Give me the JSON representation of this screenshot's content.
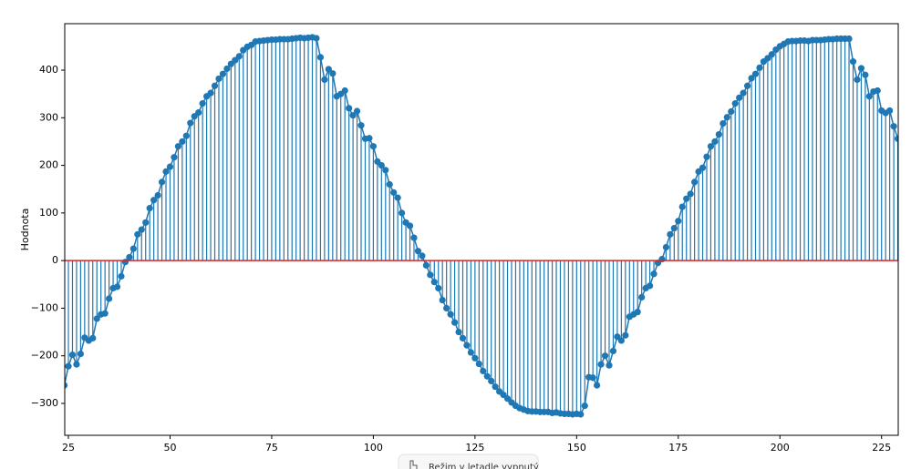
{
  "chart_data": {
    "type": "stem",
    "y_label": "Hodnota",
    "x": [
      24,
      25,
      26,
      27,
      28,
      29,
      30,
      31,
      32,
      33,
      34,
      35,
      36,
      37,
      38,
      39,
      40,
      41,
      42,
      43,
      44,
      45,
      46,
      47,
      48,
      49,
      50,
      51,
      52,
      53,
      54,
      55,
      56,
      57,
      58,
      59,
      60,
      61,
      62,
      63,
      64,
      65,
      66,
      67,
      68,
      69,
      70,
      71,
      72,
      73,
      74,
      75,
      76,
      77,
      78,
      79,
      80,
      81,
      82,
      83,
      84,
      85,
      86,
      87,
      88,
      89,
      90,
      91,
      92,
      93,
      94,
      95,
      96,
      97,
      98,
      99,
      100,
      101,
      102,
      103,
      104,
      105,
      106,
      107,
      108,
      109,
      110,
      111,
      112,
      113,
      114,
      115,
      116,
      117,
      118,
      119,
      120,
      121,
      122,
      123,
      124,
      125,
      126,
      127,
      128,
      129,
      130,
      131,
      132,
      133,
      134,
      135,
      136,
      137,
      138,
      139,
      140,
      141,
      142,
      143,
      144,
      145,
      146,
      147,
      148,
      149,
      150,
      151,
      152,
      153,
      154,
      155,
      156,
      157,
      158,
      159,
      160,
      161,
      162,
      163,
      164,
      165,
      166,
      167,
      168,
      169,
      170,
      171,
      172,
      173,
      174,
      175,
      176,
      177,
      178,
      179,
      180,
      181,
      182,
      183,
      184,
      185,
      186,
      187,
      188,
      189,
      190,
      191,
      192,
      193,
      194,
      195,
      196,
      197,
      198,
      199,
      200,
      201,
      202,
      203,
      204,
      205,
      206,
      207,
      208,
      209,
      210,
      211,
      212,
      213,
      214,
      215,
      216,
      217,
      218,
      219,
      220,
      221,
      222,
      223,
      224,
      225,
      226,
      227,
      228,
      229
    ],
    "values": [
      -262,
      -222,
      -198,
      -218,
      -196,
      -162,
      -168,
      -163,
      -122,
      -113,
      -111,
      -80,
      -58,
      -55,
      -33,
      -3,
      7,
      25,
      55,
      65,
      80,
      110,
      127,
      137,
      165,
      187,
      197,
      217,
      240,
      250,
      262,
      289,
      303,
      311,
      330,
      345,
      352,
      367,
      382,
      392,
      403,
      413,
      421,
      429,
      442,
      449,
      453,
      460,
      461,
      462,
      463,
      464,
      464,
      465,
      465,
      465,
      466,
      467,
      468,
      467,
      468,
      469,
      467,
      427,
      380,
      402,
      393,
      345,
      350,
      357,
      320,
      305,
      314,
      284,
      256,
      257,
      240,
      208,
      200,
      190,
      160,
      143,
      132,
      100,
      80,
      73,
      48,
      20,
      10,
      -10,
      -30,
      -45,
      -58,
      -83,
      -100,
      -113,
      -130,
      -150,
      -163,
      -178,
      -193,
      -205,
      -217,
      -232,
      -243,
      -253,
      -265,
      -275,
      -282,
      -290,
      -298,
      -305,
      -310,
      -313,
      -316,
      -317,
      -317,
      -318,
      -318,
      -318,
      -320,
      -319,
      -321,
      -322,
      -322,
      -323,
      -322,
      -323,
      -305,
      -245,
      -246,
      -262,
      -218,
      -200,
      -220,
      -190,
      -160,
      -168,
      -157,
      -118,
      -113,
      -108,
      -77,
      -58,
      -53,
      -28,
      -5,
      3,
      28,
      55,
      68,
      83,
      113,
      130,
      140,
      165,
      187,
      195,
      218,
      240,
      250,
      265,
      288,
      301,
      313,
      330,
      342,
      352,
      367,
      383,
      392,
      405,
      418,
      425,
      433,
      443,
      450,
      455,
      460,
      461,
      461,
      462,
      462,
      461,
      463,
      463,
      463,
      464,
      465,
      465,
      466,
      466,
      466,
      466,
      418,
      380,
      404,
      390,
      345,
      355,
      357,
      315,
      310,
      315,
      282,
      256
    ],
    "color": "#1f77b4",
    "baseline_color": "#d62728",
    "xlim": [
      24.1,
      229.1
    ],
    "ylim": [
      -367,
      497.6
    ],
    "xticks": [
      25,
      50,
      75,
      100,
      125,
      150,
      175,
      200,
      225
    ],
    "yticks": [
      {
        "value": -300,
        "label": "−300"
      },
      {
        "value": -200,
        "label": "−200"
      },
      {
        "value": -100,
        "label": "−100"
      },
      0,
      100,
      200,
      300,
      400
    ]
  },
  "toast": {
    "text": "Režim v letadle vypnutý"
  }
}
